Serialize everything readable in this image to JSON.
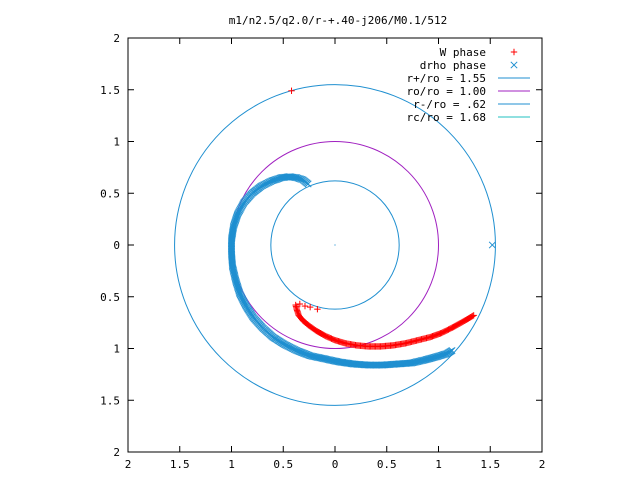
{
  "chart_data": {
    "type": "scatter",
    "title": "m1/n2.5/q2.0/r-+.40-j206/M0.1/512",
    "xlabel": "",
    "ylabel": "",
    "xlim": [
      -2,
      2
    ],
    "ylim": [
      -2,
      2
    ],
    "x_ticks": [
      -2,
      -1.5,
      -1,
      -0.5,
      0,
      0.5,
      1,
      1.5,
      2
    ],
    "y_ticks": [
      -2,
      -1.5,
      -1,
      -0.5,
      0,
      0.5,
      1,
      1.5,
      2
    ],
    "x_tick_labels": [
      "2",
      "1.5",
      "1",
      "0.5",
      "0",
      "0.5",
      "1",
      "1.5",
      "2"
    ],
    "y_tick_labels": [
      "2",
      "1.5",
      "1",
      "0.5",
      "0",
      "0.5",
      "1",
      "1.5",
      "2"
    ],
    "grid": false,
    "legend_position": "top-right",
    "series": [
      {
        "name": "W phase",
        "kind": "points",
        "marker": "plus",
        "color": "#ff0000",
        "points": [
          [
            -0.42,
            1.49
          ],
          [
            -0.34,
            -0.57
          ],
          [
            -0.29,
            -0.59
          ],
          [
            -0.24,
            -0.6
          ],
          [
            -0.17,
            -0.62
          ],
          [
            -0.38,
            -0.58
          ],
          [
            -0.37,
            -0.62
          ],
          [
            -0.35,
            -0.68
          ],
          [
            -0.31,
            -0.73
          ],
          [
            -0.25,
            -0.78
          ],
          [
            -0.18,
            -0.83
          ],
          [
            -0.09,
            -0.88
          ],
          [
            0.0,
            -0.92
          ],
          [
            0.1,
            -0.95
          ],
          [
            0.21,
            -0.97
          ],
          [
            0.32,
            -0.98
          ],
          [
            0.44,
            -0.98
          ],
          [
            0.56,
            -0.97
          ],
          [
            0.68,
            -0.95
          ],
          [
            0.8,
            -0.92
          ],
          [
            0.92,
            -0.89
          ],
          [
            1.03,
            -0.85
          ],
          [
            1.13,
            -0.8
          ],
          [
            1.22,
            -0.75
          ],
          [
            1.29,
            -0.71
          ],
          [
            1.34,
            -0.68
          ]
        ]
      },
      {
        "name": "drho phase",
        "kind": "points",
        "marker": "cross",
        "color": "#1f8fd0",
        "points": [
          [
            1.52,
            0.0
          ],
          [
            -0.26,
            0.59
          ],
          [
            -0.31,
            0.63
          ],
          [
            -0.37,
            0.65
          ],
          [
            -0.44,
            0.66
          ],
          [
            -0.52,
            0.65
          ],
          [
            -0.61,
            0.62
          ],
          [
            -0.71,
            0.57
          ],
          [
            -0.8,
            0.5
          ],
          [
            -0.88,
            0.41
          ],
          [
            -0.94,
            0.3
          ],
          [
            -0.98,
            0.18
          ],
          [
            -1.0,
            0.05
          ],
          [
            -1.0,
            -0.08
          ],
          [
            -0.99,
            -0.21
          ],
          [
            -0.96,
            -0.34
          ],
          [
            -0.92,
            -0.47
          ],
          [
            -0.86,
            -0.59
          ],
          [
            -0.79,
            -0.7
          ],
          [
            -0.7,
            -0.8
          ],
          [
            -0.6,
            -0.89
          ],
          [
            -0.49,
            -0.96
          ],
          [
            -0.37,
            -1.02
          ],
          [
            -0.24,
            -1.07
          ],
          [
            -0.1,
            -1.1
          ],
          [
            0.04,
            -1.13
          ],
          [
            0.18,
            -1.15
          ],
          [
            0.32,
            -1.16
          ],
          [
            0.46,
            -1.16
          ],
          [
            0.6,
            -1.15
          ],
          [
            0.74,
            -1.14
          ],
          [
            0.87,
            -1.11
          ],
          [
            0.98,
            -1.08
          ],
          [
            1.08,
            -1.05
          ],
          [
            1.13,
            -1.02
          ]
        ]
      },
      {
        "name": "r+/ro = 1.55",
        "kind": "circle",
        "radius": 1.55,
        "color": "#1f8fd0"
      },
      {
        "name": "ro/ro = 1.00",
        "kind": "circle",
        "radius": 1.0,
        "color": "#a020c0"
      },
      {
        "name": "r-/ro = .62",
        "kind": "circle",
        "radius": 0.62,
        "color": "#1f8fd0"
      },
      {
        "name": "rc/ro = 1.68",
        "kind": "circle",
        "radius": 1.68,
        "color": "#20c0c0",
        "drawn": false
      }
    ]
  }
}
